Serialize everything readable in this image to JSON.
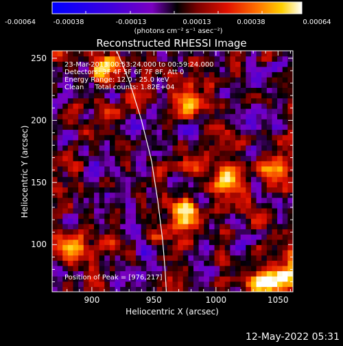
{
  "colorbar": {
    "ticks": [
      "-0.00064",
      "-0.00038",
      "-0.00013",
      "0.00013",
      "0.00038",
      "0.00064"
    ],
    "unit_label": "(photons cm⁻² s⁻¹ asec⁻²)"
  },
  "chart_data": {
    "type": "heatmap",
    "title": "Reconstructed RHESSI Image",
    "xlabel": "Heliocentric X (arcsec)",
    "ylabel": "Heliocentric Y (arcsec)",
    "xlim": [
      868,
      1062
    ],
    "ylim": [
      62,
      256
    ],
    "x_ticks": [
      900,
      950,
      1000,
      1050
    ],
    "y_ticks": [
      100,
      150,
      200,
      250
    ],
    "color_range": [
      -0.00064,
      0.00064
    ],
    "annotations": [
      "23-Mar-2013 00:53:24.000 to 00:59:24.000",
      "Detectors: 3F 4F 5F 6F 7F 8F, Att 0",
      "Energy Range: 12.0 - 25.0 keV",
      "Clean     Total counts: 1.82E+04"
    ],
    "peak_label": "Position of Peak = [976,217]",
    "peak_position": [
      976,
      217
    ],
    "limb_curve": [
      [
        920,
        256
      ],
      [
        930,
        232
      ],
      [
        940,
        200
      ],
      [
        948,
        168
      ],
      [
        953,
        136
      ],
      [
        957,
        104
      ],
      [
        959,
        80
      ],
      [
        960,
        62
      ]
    ],
    "bright_sources": [
      {
        "x": 975,
        "y": 125,
        "intensity": 1.0
      },
      {
        "x": 978,
        "y": 218,
        "intensity": 0.9
      },
      {
        "x": 1040,
        "y": 70,
        "intensity": 0.95
      },
      {
        "x": 1055,
        "y": 75,
        "intensity": 0.85
      },
      {
        "x": 910,
        "y": 240,
        "intensity": 0.75
      },
      {
        "x": 1008,
        "y": 150,
        "intensity": 0.7
      },
      {
        "x": 880,
        "y": 100,
        "intensity": 0.65
      },
      {
        "x": 1050,
        "y": 160,
        "intensity": 0.7
      }
    ]
  },
  "footer": {
    "timestamp": "12-May-2022 05:31"
  }
}
